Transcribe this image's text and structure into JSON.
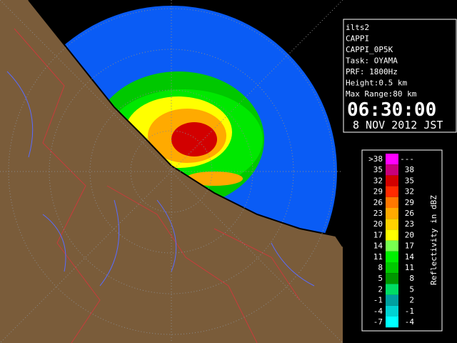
{
  "info": {
    "lines": [
      "ilts2",
      "CAPPI",
      "CAPPI_0P5K",
      "Task: OYAMA",
      "PRF: 1800Hz",
      "Height:0.5 km",
      "Max Range:80 km"
    ],
    "time": "06:30:00",
    "date": "8 NOV 2012 JST"
  },
  "legend": {
    "title": "Reflectivity in dBZ",
    "items": [
      {
        "low": ">38",
        "high": "---",
        "color": "#ff00ff"
      },
      {
        "low": "35",
        "high": "38",
        "color": "#c8007c"
      },
      {
        "low": "32",
        "high": "35",
        "color": "#d20000"
      },
      {
        "low": "29",
        "high": "32",
        "color": "#ff2a00"
      },
      {
        "low": "26",
        "high": "29",
        "color": "#ff7800"
      },
      {
        "low": "23",
        "high": "26",
        "color": "#ffaa00"
      },
      {
        "low": "20",
        "high": "23",
        "color": "#ffd200"
      },
      {
        "low": "17",
        "high": "20",
        "color": "#ffff00"
      },
      {
        "low": "14",
        "high": "17",
        "color": "#78ff50"
      },
      {
        "low": "11",
        "high": "14",
        "color": "#00f000"
      },
      {
        "low": "8",
        "high": "11",
        "color": "#00c800"
      },
      {
        "low": "5",
        "high": "8",
        "color": "#009600"
      },
      {
        "low": "2",
        "high": "5",
        "color": "#00dc64"
      },
      {
        "low": "-1",
        "high": "2",
        "color": "#00a0a0"
      },
      {
        "low": "-4",
        "high": "-1",
        "color": "#00d2d2"
      },
      {
        "low": "-7",
        "high": "-4",
        "color": "#00ffff"
      }
    ]
  }
}
